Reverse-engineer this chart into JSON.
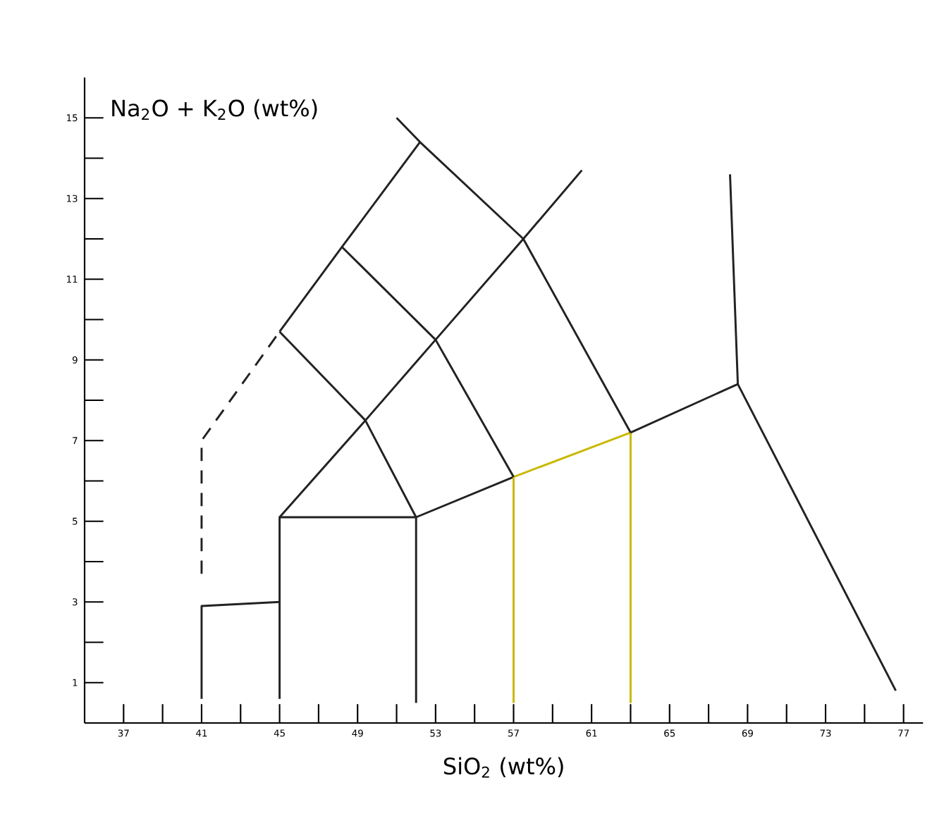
{
  "chart_data": {
    "type": "line",
    "xlabel": "SiO$_{2}$ (wt%)",
    "ylabel": "Na$_{2}$O + K$_{2}$O (wt%)",
    "xlim": [
      35,
      78
    ],
    "ylim": [
      0,
      16
    ],
    "grid": false,
    "marker": "none",
    "line_style": "solid",
    "xticks": [
      37,
      {
        "value": 39,
        "label": null
      },
      41,
      {
        "value": 43,
        "label": null
      },
      45,
      {
        "value": 47,
        "label": null
      },
      49,
      {
        "value": 51,
        "label": null
      },
      53,
      {
        "value": 55,
        "label": null
      },
      57,
      {
        "value": 59,
        "label": null
      },
      61,
      {
        "value": 63,
        "label": null
      },
      65,
      {
        "value": 67,
        "label": null
      },
      69,
      {
        "value": 71,
        "label": null
      },
      73,
      {
        "value": 75,
        "label": null
      },
      77
    ],
    "yticks": [
      1,
      {
        "value": 2,
        "label": null
      },
      3,
      {
        "value": 4,
        "label": null
      },
      5,
      {
        "value": 6,
        "label": null
      },
      7,
      {
        "value": 8,
        "label": null
      },
      9,
      {
        "value": 10,
        "label": null
      },
      11,
      {
        "value": 12,
        "label": null
      },
      13,
      {
        "value": 14,
        "label": null
      },
      15
    ],
    "series": [
      {
        "color": "#222222",
        "x": [
          41,
          41,
          45
        ],
        "values": [
          0.6,
          2.9,
          3.0
        ]
      },
      {
        "color": "#222222",
        "line_style": "dashed",
        "x": [
          41,
          41,
          45
        ],
        "values": [
          3.7,
          7.0,
          9.7
        ]
      },
      {
        "color": "#222222",
        "x": [
          45,
          45,
          52,
          52
        ],
        "values": [
          0.6,
          5.1,
          5.1,
          0.5
        ]
      },
      {
        "color": "#222222",
        "x": [
          52,
          57
        ],
        "values": [
          5.1,
          6.1
        ]
      },
      {
        "color": "#c9b800",
        "x": [
          57,
          57,
          63,
          63
        ],
        "values": [
          0.5,
          6.1,
          7.2,
          0.5
        ]
      },
      {
        "color": "#222222",
        "x": [
          63,
          68.5,
          76.6
        ],
        "values": [
          7.2,
          8.4,
          0.8
        ]
      },
      {
        "color": "#222222",
        "x": [
          68.5,
          68.1
        ],
        "values": [
          8.4,
          13.6
        ]
      },
      {
        "color": "#222222",
        "x": [
          45,
          49.4,
          53.0,
          57.5,
          60.5
        ],
        "values": [
          5.1,
          7.5,
          9.5,
          12.0,
          13.7
        ]
      },
      {
        "color": "#222222",
        "x": [
          51.0,
          52.2,
          57.5,
          63
        ],
        "values": [
          15.0,
          14.4,
          12.0,
          7.2
        ]
      },
      {
        "color": "#222222",
        "x": [
          45,
          48.2,
          52.2
        ],
        "values": [
          9.7,
          11.8,
          14.4
        ]
      },
      {
        "color": "#222222",
        "x": [
          48.2,
          53.0,
          57
        ],
        "values": [
          11.8,
          9.5,
          6.1
        ]
      },
      {
        "color": "#222222",
        "x": [
          45,
          49.4,
          52
        ],
        "values": [
          9.7,
          7.5,
          5.1
        ]
      }
    ]
  }
}
